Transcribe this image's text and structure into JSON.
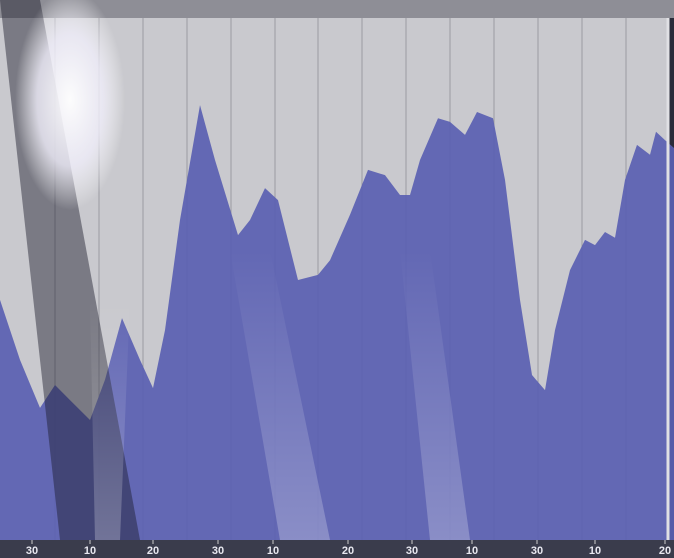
{
  "chart_data": {
    "type": "area",
    "x": [
      0,
      2,
      4,
      5.5,
      7,
      9,
      10.5,
      12.2,
      14,
      15.3,
      16.5,
      18,
      20,
      21.5,
      23.8,
      25,
      26.5,
      27.8,
      29.8,
      31.8,
      33,
      35,
      36.8,
      38.5,
      40,
      41,
      42,
      43.8,
      45,
      46.5,
      47.7,
      49.3,
      50.5,
      52,
      53.2,
      54.5,
      55.5,
      57,
      58.5,
      59.5,
      60.5,
      61.5,
      62.5,
      63.7,
      65,
      65.6,
      66.5,
      67.4
    ],
    "values": [
      46,
      34.5,
      25.3,
      29.7,
      26.8,
      23,
      30.7,
      42.5,
      34.5,
      29.1,
      40.2,
      61.3,
      83.3,
      72.8,
      58.4,
      61.3,
      67.4,
      65.1,
      49.8,
      50.8,
      53.6,
      62.3,
      70.9,
      69.9,
      66.1,
      66.1,
      72.8,
      80.8,
      80.1,
      77.6,
      82,
      80.8,
      69,
      46,
      31.6,
      28.7,
      40.2,
      51.7,
      57.5,
      56.5,
      59,
      57.9,
      69,
      75.7,
      73.8,
      78.2,
      76.6,
      75.1
    ],
    "color": "#5a60b2",
    "xlim": [
      0,
      67.4
    ],
    "ylim": [
      0,
      100
    ],
    "xticks": [
      {
        "value": 3.2,
        "label": "30"
      },
      {
        "value": 9,
        "label": "10"
      },
      {
        "value": 15.3,
        "label": "20"
      },
      {
        "value": 21.8,
        "label": "30"
      },
      {
        "value": 27.3,
        "label": "10"
      },
      {
        "value": 34.8,
        "label": "20"
      },
      {
        "value": 41.2,
        "label": "30"
      },
      {
        "value": 47.2,
        "label": "10"
      },
      {
        "value": 53.7,
        "label": "30"
      },
      {
        "value": 59.5,
        "label": "10"
      },
      {
        "value": 66.5,
        "label": "20"
      }
    ]
  }
}
